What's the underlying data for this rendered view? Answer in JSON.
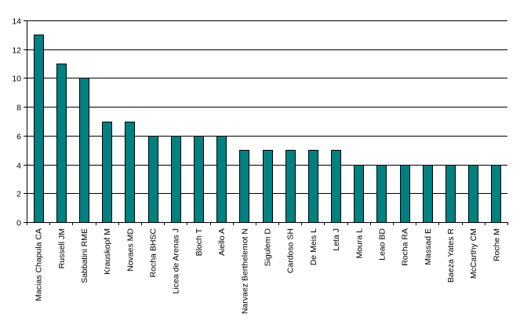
{
  "chart_data": {
    "type": "bar",
    "title": "",
    "xlabel": "",
    "ylabel": "",
    "categories": [
      "Macias Chapula CA",
      "Russell JM",
      "Sabbatini RME",
      "Krauskopf M",
      "Novaes MD",
      "Rocha BHSC",
      "Licea de Arenas J",
      "Bloch T",
      "Aiello A",
      "Narvaez Berthelemot N",
      "Sigulem D",
      "Cardoso SH",
      "De Meis L",
      "Leta J",
      "Moura L",
      "Leao BD",
      "Rocha RA",
      "Massad E",
      "Baeza Yates R",
      "McCarthy CM",
      "Roche M"
    ],
    "values": [
      13,
      11,
      10,
      7,
      7,
      6,
      6,
      6,
      6,
      5,
      5,
      5,
      5,
      5,
      4,
      4,
      4,
      4,
      4,
      4,
      4
    ],
    "ylim": [
      0,
      14
    ],
    "yticks": [
      "0",
      "2",
      "4",
      "6",
      "8",
      "10",
      "12",
      "14"
    ],
    "grid": true,
    "legend": "none",
    "colors": {
      "bar_fill": "#008080",
      "bar_stroke": "#000000",
      "grid": "#000000",
      "background": "#ffffff"
    }
  }
}
